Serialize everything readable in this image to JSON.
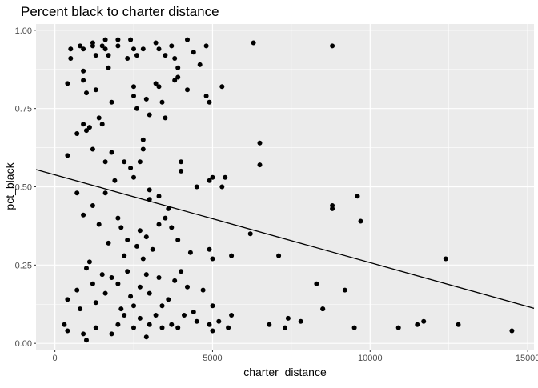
{
  "chart_data": {
    "type": "scatter",
    "title": "Percent black to charter distance",
    "xlabel": "charter_distance",
    "ylabel": "pct_black",
    "xlim": [
      -600,
      15200
    ],
    "ylim": [
      -0.02,
      1.02
    ],
    "x_ticks": [
      0,
      5000,
      10000,
      15000
    ],
    "x_tick_labels": [
      "0",
      "5000",
      "10000",
      "15000"
    ],
    "y_ticks": [
      0.0,
      0.25,
      0.5,
      0.75,
      1.0
    ],
    "y_tick_labels": [
      "0.00",
      "0.25",
      "0.50",
      "0.75",
      "1.00"
    ],
    "grid": true,
    "panel_background": "#ebebeb",
    "grid_color": "#ffffff",
    "point_color": "#000000",
    "line_color": "#000000",
    "trend_line": {
      "x": [
        -600,
        15200
      ],
      "y": [
        0.555,
        0.112
      ]
    },
    "points": [
      [
        500,
        0.94
      ],
      [
        500,
        0.91
      ],
      [
        800,
        0.95
      ],
      [
        900,
        0.94
      ],
      [
        900,
        0.87
      ],
      [
        900,
        0.84
      ],
      [
        1200,
        0.96
      ],
      [
        1200,
        0.95
      ],
      [
        1300,
        0.92
      ],
      [
        1500,
        0.95
      ],
      [
        1600,
        0.97
      ],
      [
        1600,
        0.94
      ],
      [
        1700,
        0.92
      ],
      [
        1700,
        0.88
      ],
      [
        2000,
        0.97
      ],
      [
        2000,
        0.95
      ],
      [
        2300,
        0.91
      ],
      [
        2400,
        0.97
      ],
      [
        2500,
        0.94
      ],
      [
        2600,
        0.92
      ],
      [
        2800,
        0.94
      ],
      [
        3200,
        0.96
      ],
      [
        3300,
        0.94
      ],
      [
        3500,
        0.92
      ],
      [
        3700,
        0.95
      ],
      [
        3800,
        0.91
      ],
      [
        3900,
        0.88
      ],
      [
        4200,
        0.97
      ],
      [
        4400,
        0.93
      ],
      [
        4600,
        0.89
      ],
      [
        4800,
        0.95
      ],
      [
        6300,
        0.96
      ],
      [
        8800,
        0.95
      ],
      [
        400,
        0.83
      ],
      [
        700,
        0.67
      ],
      [
        1000,
        0.8
      ],
      [
        1000,
        0.68
      ],
      [
        1300,
        0.81
      ],
      [
        1400,
        0.72
      ],
      [
        1500,
        0.7
      ],
      [
        1800,
        0.77
      ],
      [
        2500,
        0.82
      ],
      [
        2500,
        0.79
      ],
      [
        2600,
        0.75
      ],
      [
        2800,
        0.65
      ],
      [
        2900,
        0.78
      ],
      [
        3200,
        0.83
      ],
      [
        3300,
        0.82
      ],
      [
        3400,
        0.77
      ],
      [
        3500,
        0.72
      ],
      [
        3800,
        0.84
      ],
      [
        3900,
        0.85
      ],
      [
        4200,
        0.81
      ],
      [
        4800,
        0.79
      ],
      [
        4900,
        0.77
      ],
      [
        5300,
        0.82
      ],
      [
        3000,
        0.73
      ],
      [
        400,
        0.6
      ],
      [
        900,
        0.7
      ],
      [
        1100,
        0.69
      ],
      [
        1200,
        0.62
      ],
      [
        1600,
        0.58
      ],
      [
        1800,
        0.61
      ],
      [
        1900,
        0.52
      ],
      [
        2200,
        0.58
      ],
      [
        2400,
        0.56
      ],
      [
        2500,
        0.53
      ],
      [
        2700,
        0.58
      ],
      [
        2800,
        0.62
      ],
      [
        3000,
        0.49
      ],
      [
        3000,
        0.46
      ],
      [
        3300,
        0.47
      ],
      [
        3600,
        0.43
      ],
      [
        4000,
        0.58
      ],
      [
        4000,
        0.55
      ],
      [
        4500,
        0.5
      ],
      [
        4900,
        0.52
      ],
      [
        5000,
        0.53
      ],
      [
        5300,
        0.5
      ],
      [
        5400,
        0.53
      ],
      [
        6500,
        0.64
      ],
      [
        6500,
        0.57
      ],
      [
        9600,
        0.47
      ],
      [
        8800,
        0.44
      ],
      [
        8800,
        0.43
      ],
      [
        1600,
        0.48
      ],
      [
        700,
        0.48
      ],
      [
        900,
        0.41
      ],
      [
        1200,
        0.44
      ],
      [
        1400,
        0.38
      ],
      [
        1700,
        0.32
      ],
      [
        2000,
        0.4
      ],
      [
        2100,
        0.37
      ],
      [
        2300,
        0.33
      ],
      [
        2600,
        0.31
      ],
      [
        2700,
        0.36
      ],
      [
        2900,
        0.34
      ],
      [
        3100,
        0.3
      ],
      [
        3300,
        0.38
      ],
      [
        3500,
        0.4
      ],
      [
        3700,
        0.37
      ],
      [
        3900,
        0.33
      ],
      [
        4300,
        0.29
      ],
      [
        4900,
        0.3
      ],
      [
        5000,
        0.27
      ],
      [
        5600,
        0.28
      ],
      [
        6200,
        0.35
      ],
      [
        7100,
        0.28
      ],
      [
        9700,
        0.39
      ],
      [
        12400,
        0.27
      ],
      [
        2200,
        0.28
      ],
      [
        2800,
        0.27
      ],
      [
        400,
        0.14
      ],
      [
        700,
        0.17
      ],
      [
        800,
        0.11
      ],
      [
        1000,
        0.24
      ],
      [
        1100,
        0.26
      ],
      [
        1200,
        0.19
      ],
      [
        1300,
        0.13
      ],
      [
        1500,
        0.22
      ],
      [
        1600,
        0.16
      ],
      [
        1800,
        0.21
      ],
      [
        2000,
        0.19
      ],
      [
        2100,
        0.11
      ],
      [
        2300,
        0.23
      ],
      [
        2400,
        0.15
      ],
      [
        2500,
        0.12
      ],
      [
        2700,
        0.18
      ],
      [
        2900,
        0.22
      ],
      [
        3000,
        0.16
      ],
      [
        3300,
        0.21
      ],
      [
        3400,
        0.12
      ],
      [
        3600,
        0.14
      ],
      [
        3800,
        0.2
      ],
      [
        4000,
        0.23
      ],
      [
        4200,
        0.18
      ],
      [
        4400,
        0.1
      ],
      [
        4700,
        0.17
      ],
      [
        5000,
        0.12
      ],
      [
        5200,
        0.07
      ],
      [
        5600,
        0.09
      ],
      [
        8300,
        0.19
      ],
      [
        8500,
        0.11
      ],
      [
        9200,
        0.17
      ],
      [
        300,
        0.06
      ],
      [
        400,
        0.04
      ],
      [
        900,
        0.03
      ],
      [
        1300,
        0.05
      ],
      [
        1800,
        0.03
      ],
      [
        2000,
        0.06
      ],
      [
        2200,
        0.09
      ],
      [
        2500,
        0.05
      ],
      [
        2700,
        0.08
      ],
      [
        2900,
        0.02
      ],
      [
        3000,
        0.06
      ],
      [
        3200,
        0.09
      ],
      [
        3400,
        0.05
      ],
      [
        3700,
        0.06
      ],
      [
        3900,
        0.05
      ],
      [
        4100,
        0.09
      ],
      [
        4500,
        0.07
      ],
      [
        4900,
        0.06
      ],
      [
        5000,
        0.04
      ],
      [
        5500,
        0.05
      ],
      [
        6800,
        0.06
      ],
      [
        7300,
        0.05
      ],
      [
        7400,
        0.08
      ],
      [
        7800,
        0.07
      ],
      [
        8500,
        0.11
      ],
      [
        9500,
        0.05
      ],
      [
        10900,
        0.05
      ],
      [
        11500,
        0.06
      ],
      [
        11700,
        0.07
      ],
      [
        12800,
        0.06
      ],
      [
        14500,
        0.04
      ],
      [
        1000,
        0.01
      ]
    ]
  }
}
